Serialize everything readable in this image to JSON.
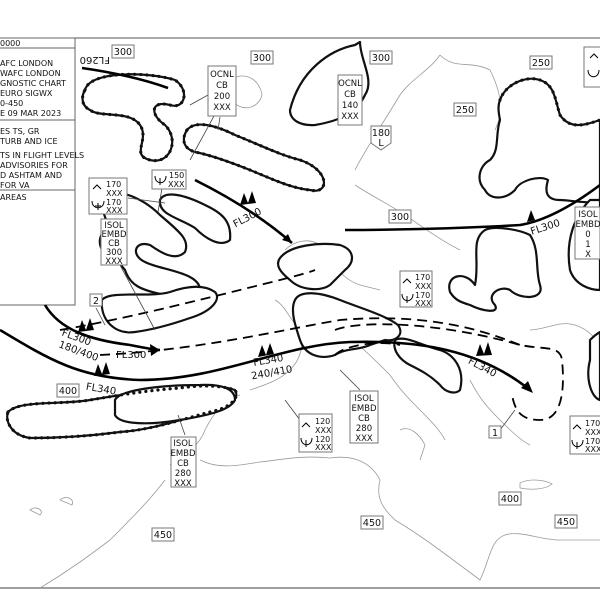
{
  "legend": {
    "header": "0000",
    "lines": [
      "AFC LONDON",
      "WAFC LONDON",
      "GNOSTIC CHART",
      "EURO SIGWX",
      "0-450",
      "E 09 MAR 2023"
    ],
    "notes": [
      "ES TS, GR",
      "TURB AND ICE",
      "",
      "TS IN FLIGHT LEVELS",
      "ADVISORIES FOR",
      "D ASHTAM AND",
      " FOR VA"
    ],
    "areas": "AREAS"
  },
  "tropopause": [
    "300",
    "300",
    "300",
    "250",
    "250",
    "300",
    "400",
    "450",
    "400",
    "450",
    "450"
  ],
  "tropopause_low": {
    "value": "180",
    "label": "L"
  },
  "jets": {
    "j1": "FL260",
    "j2": "FL300",
    "j3": "FL300",
    "j4": "FL300",
    "j4b": "180/400",
    "j5": "FL300",
    "j6": "FL340",
    "j7": "FL340",
    "j7b": "240/410",
    "j8": "FL340"
  },
  "cb_boxes": [
    {
      "lines": [
        "OCNL",
        "CB",
        "200",
        "XXX"
      ]
    },
    {
      "lines": [
        "OCNL",
        "CB",
        "140",
        "XXX"
      ]
    },
    {
      "lines": [
        "ISOL",
        "EMBD",
        "CB",
        "300",
        "XXX"
      ]
    },
    {
      "lines": [
        "ISOL",
        "EMBD",
        "CB",
        "280",
        "XXX"
      ]
    },
    {
      "lines": [
        "ISOL",
        "EMBD",
        "CB",
        "280",
        "XXX"
      ]
    },
    {
      "lines": [
        "ISOL",
        "EMBD",
        "0",
        "1",
        "X"
      ]
    }
  ],
  "turb_ice_boxes": [
    {
      "turb_top": "170",
      "turb_base": "XXX",
      "ice_top": "170",
      "ice_base": "XXX"
    },
    {
      "ice_top": "150",
      "ice_base": "XXX"
    },
    {
      "turb_top": "170",
      "turb_base": "XXX",
      "ice_top": "170",
      "ice_base": "XXX"
    },
    {
      "turb_top": "120",
      "turb_base": "XXX",
      "ice_top": "120",
      "ice_base": "XXX"
    },
    {
      "turb_top": "170",
      "turb_base": "XXX",
      "ice_top": "170",
      "ice_base": "XXX"
    }
  ],
  "area_numbers": [
    "2",
    "1"
  ],
  "icons": {
    "turbulence": "turbulence-caret-icon",
    "icing": "icing-symbol-icon",
    "jet_arrow": "jet-arrowhead-icon",
    "wind_barb": "wind-barb-icon"
  },
  "colors": {
    "lines": "#000000",
    "coastline": "#9a9a9a",
    "background": "#ffffff"
  }
}
